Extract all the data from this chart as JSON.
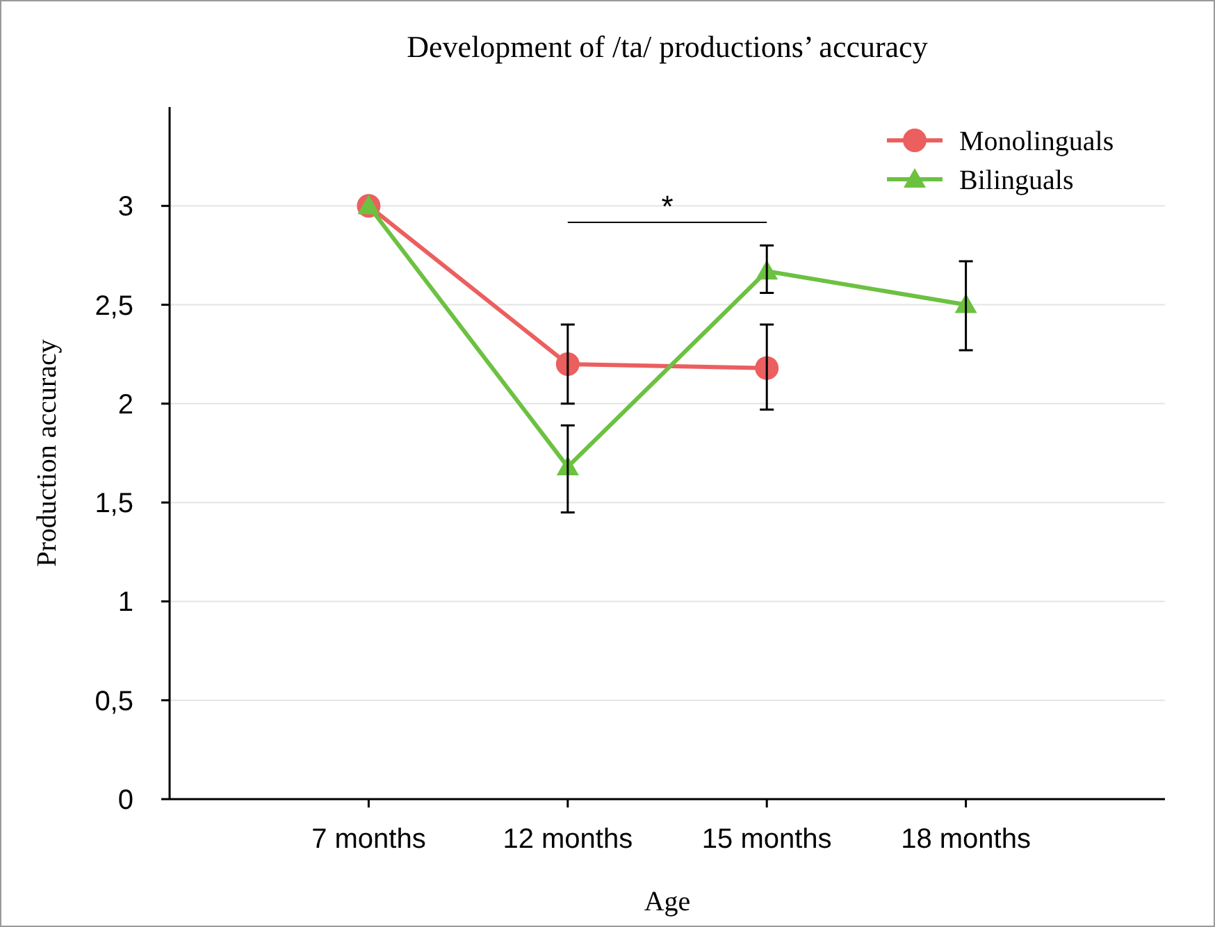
{
  "chart_data": {
    "type": "line",
    "title": "Development of /ta/ productions’ accuracy",
    "xlabel": "Age",
    "ylabel": "Production accuracy",
    "categories": [
      "7 months",
      "12 months",
      "15 months",
      "18 months"
    ],
    "series": [
      {
        "name": "Monolinguals",
        "color": "#eb5f5f",
        "marker": "circle",
        "values": [
          3.0,
          2.2,
          2.18,
          null
        ],
        "errors": [
          null,
          [
            2.0,
            2.4
          ],
          [
            1.97,
            2.4
          ],
          null
        ]
      },
      {
        "name": "Bilinguals",
        "color": "#6cc141",
        "marker": "triangle",
        "values": [
          3.0,
          1.68,
          2.67,
          2.5
        ],
        "errors": [
          null,
          [
            1.45,
            1.89
          ],
          [
            2.56,
            2.8
          ],
          [
            2.27,
            2.72
          ]
        ]
      }
    ],
    "ylim": [
      0,
      3.5
    ],
    "yticks": [
      0,
      {
        "value": 0.5,
        "label": "0,5"
      },
      1,
      {
        "value": 1.5,
        "label": "1,5"
      },
      2,
      {
        "value": 2.5,
        "label": "2,5"
      },
      3
    ],
    "grid": "y",
    "legend": "top right",
    "line_style": "solid",
    "annotations": [
      "*"
    ]
  }
}
